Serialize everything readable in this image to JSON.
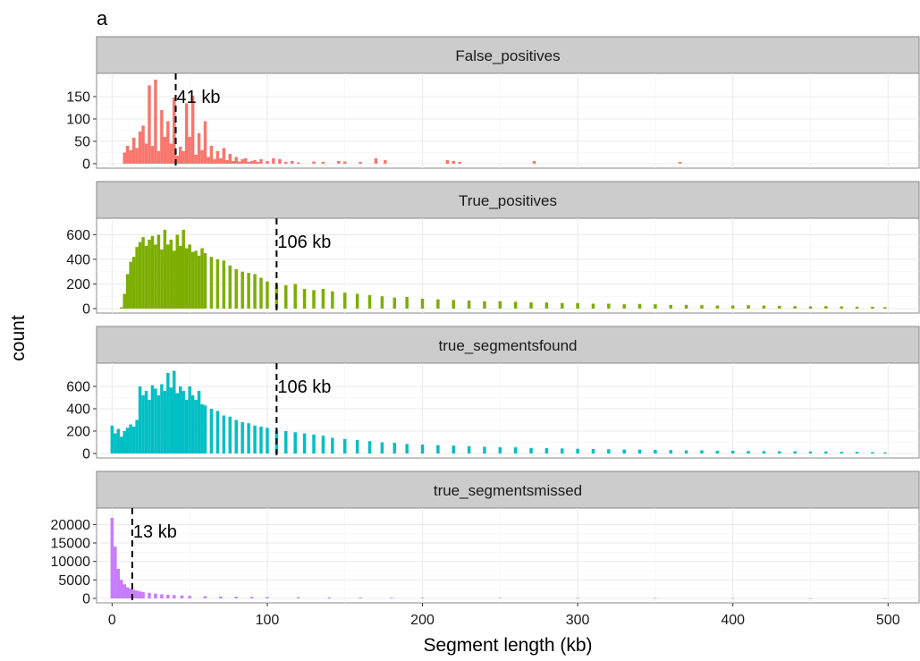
{
  "chart_data": {
    "type": "bar",
    "panel_label": "a",
    "xlabel": "Segment length (kb)",
    "ylabel": "count",
    "xlim": [
      -10,
      520
    ],
    "x_ticks": [
      0,
      100,
      200,
      300,
      400,
      500
    ],
    "grid": true,
    "bin_width_kb": 2,
    "panels": [
      {
        "name": "False_positives",
        "color": "#F8766D",
        "ylim": [
          0,
          190
        ],
        "y_ticks": [
          0,
          50,
          100,
          150
        ],
        "median_kb": 41,
        "median_label": "41 kb",
        "bins_x": [
          8,
          10,
          12,
          14,
          16,
          18,
          20,
          22,
          24,
          26,
          28,
          30,
          32,
          34,
          36,
          38,
          40,
          42,
          44,
          46,
          48,
          50,
          52,
          54,
          56,
          58,
          60,
          62,
          64,
          66,
          68,
          70,
          72,
          74,
          76,
          78,
          80,
          82,
          84,
          86,
          88,
          90,
          92,
          94,
          96,
          100,
          104,
          108,
          112,
          116,
          120,
          130,
          136,
          146,
          150,
          160,
          170,
          176,
          216,
          220,
          224,
          272,
          366
        ],
        "counts": [
          25,
          40,
          30,
          58,
          35,
          72,
          85,
          45,
          175,
          40,
          188,
          28,
          120,
          60,
          95,
          45,
          148,
          18,
          38,
          28,
          135,
          60,
          152,
          20,
          68,
          30,
          95,
          15,
          40,
          10,
          28,
          12,
          35,
          8,
          22,
          6,
          15,
          5,
          10,
          12,
          4,
          6,
          8,
          4,
          10,
          6,
          12,
          10,
          4,
          6,
          3,
          5,
          4,
          6,
          5,
          4,
          12,
          8,
          8,
          6,
          4,
          6,
          4
        ]
      },
      {
        "name": "True_positives",
        "color": "#7CAE00",
        "ylim": [
          0,
          690
        ],
        "y_ticks": [
          0,
          200,
          400,
          600
        ],
        "median_kb": 106,
        "median_label": "106 kb",
        "bins_x": [
          6,
          8,
          10,
          12,
          14,
          16,
          18,
          20,
          22,
          24,
          26,
          28,
          30,
          32,
          34,
          36,
          38,
          40,
          42,
          44,
          46,
          48,
          50,
          52,
          54,
          56,
          58,
          60,
          64,
          68,
          72,
          76,
          80,
          84,
          88,
          92,
          96,
          100,
          106,
          112,
          118,
          124,
          130,
          136,
          142,
          150,
          158,
          166,
          174,
          182,
          190,
          200,
          210,
          220,
          230,
          240,
          250,
          260,
          270,
          280,
          290,
          300,
          310,
          320,
          330,
          340,
          350,
          360,
          370,
          380,
          390,
          400,
          410,
          420,
          430,
          440,
          450,
          460,
          470,
          480,
          490,
          498
        ],
        "counts": [
          10,
          120,
          280,
          380,
          420,
          500,
          540,
          580,
          510,
          560,
          590,
          520,
          600,
          480,
          640,
          520,
          560,
          470,
          600,
          510,
          640,
          490,
          520,
          460,
          470,
          430,
          490,
          450,
          420,
          400,
          390,
          350,
          320,
          300,
          290,
          280,
          250,
          220,
          200,
          190,
          200,
          160,
          150,
          160,
          140,
          130,
          120,
          110,
          100,
          90,
          95,
          80,
          75,
          70,
          65,
          60,
          60,
          55,
          50,
          50,
          45,
          45,
          40,
          40,
          35,
          38,
          35,
          30,
          30,
          28,
          25,
          25,
          28,
          25,
          22,
          20,
          18,
          20,
          18,
          15,
          15,
          12
        ]
      },
      {
        "name": "true_segmentsfound",
        "color": "#00BFC4",
        "ylim": [
          0,
          760
        ],
        "y_ticks": [
          0,
          200,
          400,
          600
        ],
        "median_kb": 106,
        "median_label": "106 kb",
        "bins_x": [
          0,
          2,
          4,
          6,
          8,
          10,
          12,
          14,
          16,
          18,
          20,
          22,
          24,
          26,
          28,
          30,
          32,
          34,
          36,
          38,
          40,
          42,
          44,
          46,
          48,
          50,
          52,
          54,
          56,
          58,
          60,
          64,
          68,
          72,
          76,
          80,
          84,
          88,
          92,
          96,
          100,
          106,
          112,
          118,
          124,
          130,
          136,
          142,
          150,
          158,
          166,
          174,
          182,
          190,
          200,
          210,
          220,
          230,
          240,
          250,
          260,
          270,
          280,
          290,
          300,
          310,
          320,
          330,
          340,
          350,
          360,
          370,
          380,
          390,
          400,
          410,
          420,
          430,
          440,
          450,
          460,
          470,
          480,
          490,
          498
        ],
        "counts": [
          250,
          180,
          220,
          150,
          200,
          230,
          260,
          240,
          300,
          600,
          520,
          560,
          480,
          610,
          580,
          520,
          620,
          560,
          720,
          590,
          740,
          540,
          600,
          560,
          480,
          600,
          520,
          480,
          560,
          440,
          430,
          400,
          380,
          340,
          330,
          300,
          280,
          270,
          250,
          240,
          230,
          210,
          200,
          190,
          180,
          170,
          160,
          140,
          130,
          120,
          110,
          100,
          95,
          85,
          80,
          75,
          70,
          65,
          60,
          55,
          55,
          50,
          48,
          45,
          42,
          40,
          38,
          35,
          35,
          32,
          30,
          28,
          28,
          25,
          25,
          22,
          22,
          20,
          20,
          18,
          18,
          15,
          15,
          12,
          10
        ]
      },
      {
        "name": "true_segmentsmissed",
        "color": "#C77CFF",
        "ylim": [
          0,
          23000
        ],
        "y_ticks": [
          0,
          5000,
          10000,
          15000,
          20000
        ],
        "y_tick_labels": [
          "0",
          "5000",
          "10000",
          "15000",
          "20000"
        ],
        "median_kb": 13,
        "median_label": "13 kb",
        "bins_x": [
          0,
          2,
          4,
          6,
          8,
          10,
          12,
          14,
          16,
          18,
          20,
          24,
          28,
          32,
          36,
          40,
          45,
          50,
          60,
          70,
          80,
          90,
          100,
          120,
          140,
          160,
          180,
          200,
          250,
          300,
          350,
          400,
          450,
          498
        ],
        "counts": [
          21800,
          14000,
          8000,
          5000,
          3800,
          3000,
          2600,
          2300,
          2100,
          1900,
          1700,
          1500,
          1300,
          1100,
          1000,
          900,
          800,
          700,
          600,
          500,
          450,
          400,
          350,
          300,
          260,
          220,
          200,
          180,
          140,
          110,
          90,
          70,
          60,
          50
        ]
      }
    ]
  }
}
